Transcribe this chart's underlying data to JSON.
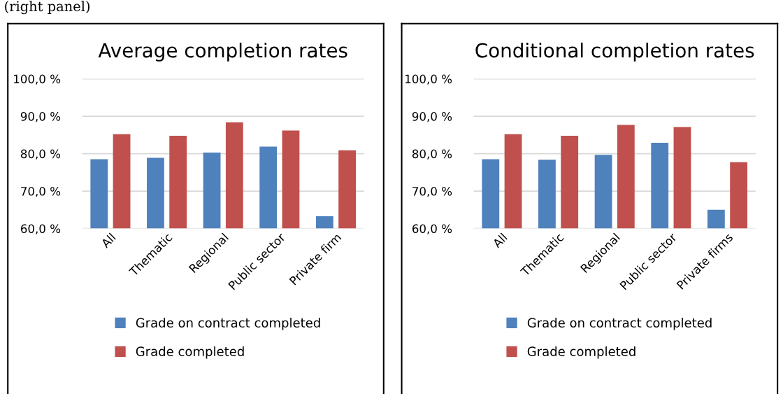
{
  "chart_data": [
    {
      "type": "bar",
      "title": "Average completion rates",
      "categories": [
        "All",
        "Thematic",
        "Regional",
        "Public sector",
        "Private firm"
      ],
      "series": [
        {
          "name": "Grade on contract completed",
          "color": "#4f81bd",
          "values": [
            78.5,
            78.9,
            80.3,
            81.9,
            63.3
          ]
        },
        {
          "name": "Grade completed",
          "color": "#c0504d",
          "values": [
            85.2,
            84.8,
            88.4,
            86.2,
            80.9
          ]
        }
      ],
      "ylim": [
        60,
        100
      ],
      "yticks": [
        {
          "value": 60,
          "label": "60,0 %"
        },
        {
          "value": 70,
          "label": "70,0 %"
        },
        {
          "value": 80,
          "label": "80,0 %"
        },
        {
          "value": 90,
          "label": "90,0 %"
        },
        {
          "value": 100,
          "label": "100,0 %"
        }
      ],
      "grid": "y",
      "legend": "bottom",
      "annotations": [
        "(right panel)"
      ]
    },
    {
      "type": "bar",
      "title": "Conditional completion rates",
      "categories": [
        "All",
        "Thematic",
        "Regional",
        "Public sector",
        "Private firms"
      ],
      "series": [
        {
          "name": "Grade on contract completed",
          "color": "#4f81bd",
          "values": [
            78.5,
            78.4,
            79.7,
            82.9,
            65.0
          ]
        },
        {
          "name": "Grade completed",
          "color": "#c0504d",
          "values": [
            85.2,
            84.8,
            87.7,
            87.1,
            77.7
          ]
        }
      ],
      "ylim": [
        60,
        100
      ],
      "yticks": [
        {
          "value": 60,
          "label": "60,0 %"
        },
        {
          "value": 70,
          "label": "70,0 %"
        },
        {
          "value": 80,
          "label": "80,0 %"
        },
        {
          "value": 90,
          "label": "90,0 %"
        },
        {
          "value": 100,
          "label": "100,0 %"
        }
      ],
      "grid": "y",
      "legend": "bottom"
    }
  ]
}
